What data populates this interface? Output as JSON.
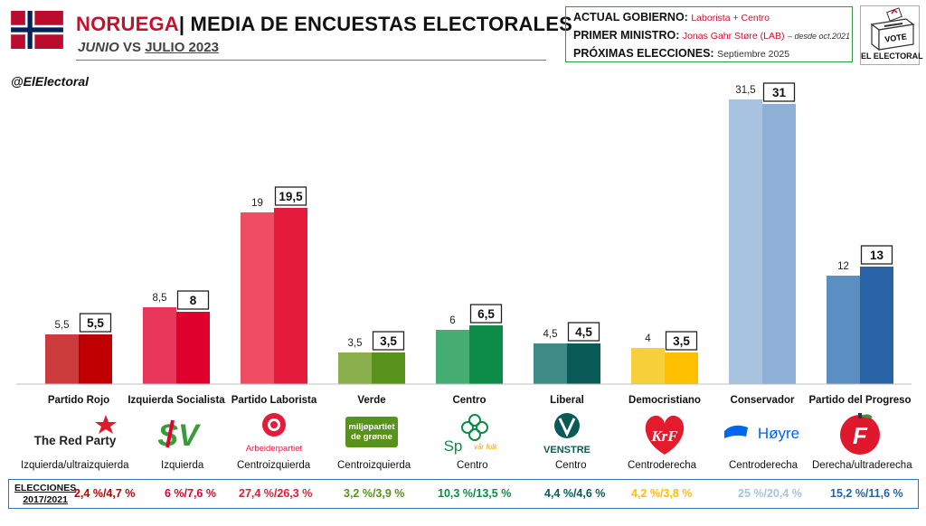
{
  "header": {
    "country": "NORUEGA",
    "separator": "|",
    "title": "MEDIA DE ENCUESTAS ELECTORALES",
    "subtitle_a": "JUNIO",
    "subtitle_b": " VS ",
    "subtitle_c": "JULIO 2023"
  },
  "government": {
    "gov_label": "ACTUAL GOBIERNO:",
    "gov_value": "Laborista + Centro",
    "pm_label": "PRIMER MINISTRO:",
    "pm_value": "Jonas Gahr Støre (LAB)",
    "pm_note": "– desde oct.2021",
    "next_label": "PRÓXIMAS ELECCIONES:",
    "next_value": "Septiembre 2025"
  },
  "brand": {
    "vote": "VOTE",
    "name": "EL ELECTORAL"
  },
  "handle": "@ElElectoral",
  "colors": {
    "accent_red": "#c8102e",
    "box_green": "#2e9a45",
    "box_blue": "#2e75b6"
  },
  "chart_data": {
    "type": "bar",
    "categories": [
      "Partido Rojo",
      "Izquierda Socialista",
      "Partido Laborista",
      "Verde",
      "Centro",
      "Liberal",
      "Democristiano",
      "Conservador",
      "Partido del Progreso"
    ],
    "series": [
      {
        "values": [
          5.5,
          8.5,
          19,
          3.5,
          6,
          4.5,
          4,
          31.5,
          12
        ],
        "labels": [
          "5,5",
          "8,5",
          "19",
          "3,5",
          "6",
          "4,5",
          "4",
          "31,5",
          "12"
        ]
      },
      {
        "values": [
          5.5,
          8,
          19.5,
          3.5,
          6.5,
          4.5,
          3.5,
          31,
          13
        ],
        "labels": [
          "5,5",
          "8",
          "19,5",
          "3,5",
          "6,5",
          "4,5",
          "3,5",
          "31",
          "13"
        ]
      }
    ],
    "colors_june": [
      "#cd3c3c",
      "#e8365a",
      "#ee4d62",
      "#8ab04e",
      "#45ad72",
      "#3d8a87",
      "#f6cf3a",
      "#a7c3e0",
      "#5b8ec1"
    ],
    "colors_july": [
      "#c00000",
      "#e0002d",
      "#e41b3a",
      "#57931b",
      "#0c8c48",
      "#0a5b58",
      "#ffc000",
      "#8eb0d6",
      "#2863a6"
    ],
    "ylim": [
      0,
      33
    ],
    "grid": false,
    "legend": "none"
  },
  "parties": [
    {
      "logo": "The Red Party",
      "ideology": "Izquierda/ultraizquierda",
      "elections": "2,4 %/4,7 %",
      "color": "#c00000"
    },
    {
      "logo": "SV",
      "ideology": "Izquierda",
      "elections": "6 %/7,6 %",
      "color": "#e0002d"
    },
    {
      "logo": "Arbeiderpartiet",
      "ideology": "Centroizquierda",
      "elections": "27,4 %/26,3 %",
      "color": "#e41b3a"
    },
    {
      "logo": "miljøpartiet de grønne",
      "ideology": "Centroizquierda",
      "elections": "3,2 %/3,9 %",
      "color": "#57931b"
    },
    {
      "logo": "Sp",
      "logo_tag": "vår folk",
      "ideology": "Centro",
      "elections": "10,3 %/13,5 %",
      "color": "#0c8c48"
    },
    {
      "logo": "VENSTRE",
      "ideology": "Centro",
      "elections": "4,4 %/4,6 %",
      "color": "#0a5b58"
    },
    {
      "logo": "KrF",
      "ideology": "Centroderecha",
      "elections": "4,2 %/3,8 %",
      "color": "#ffc000"
    },
    {
      "logo": "Høyre",
      "ideology": "Centroderecha",
      "elections": "25 %/20,4 %",
      "color": "#a7c3e0"
    },
    {
      "logo": "F",
      "ideology": "Derecha/ultraderecha",
      "elections": "15,2 %/11,6 %",
      "color": "#2863a6"
    }
  ],
  "elections_title": [
    "ELECCIONES",
    "2017/2021"
  ]
}
